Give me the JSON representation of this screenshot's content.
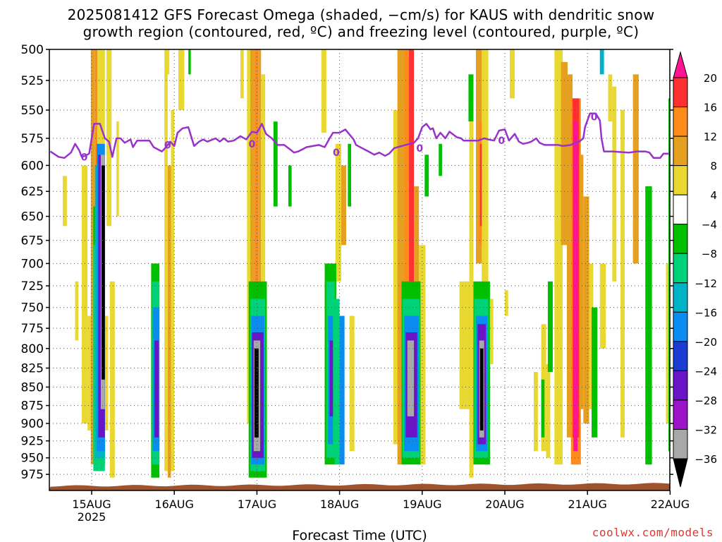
{
  "chart_data": {
    "type": "heatmap",
    "title_line1": "2025081412 GFS Forecast Omega (shaded, −cm/s) for KAUS with dendritic snow",
    "title_line2": "growth region (contoured, red, ºC) and freezing level (contoured, purple, ºC)",
    "xlabel": "Forecast Time (UTC)",
    "ylabel": "",
    "y_axis": {
      "levels": [
        500,
        525,
        550,
        575,
        600,
        625,
        650,
        675,
        700,
        725,
        750,
        775,
        800,
        825,
        850,
        875,
        900,
        925,
        950,
        975
      ],
      "range": [
        500,
        1000
      ],
      "scale": "log-pressure",
      "grid": "dotted"
    },
    "x_axis": {
      "range": [
        "2025-08-14 12Z",
        "2025-08-22 00Z"
      ],
      "ticks": [
        "15AUG",
        "16AUG",
        "17AUG",
        "18AUG",
        "19AUG",
        "20AUG",
        "21AUG",
        "22AUG"
      ],
      "year_label": "2025",
      "grid": "dotted"
    },
    "colorbar": {
      "labels": [
        "20",
        "16",
        "12",
        "8",
        "4",
        "−4",
        "−8",
        "−12",
        "−16",
        "−20",
        "−24",
        "−28",
        "−32",
        "−36"
      ],
      "colors": [
        "#ff1493",
        "#ff3030",
        "#ff8c1a",
        "#e6a020",
        "#e8d830",
        "#ffffff",
        "#00c000",
        "#00d27a",
        "#00b4c8",
        "#0a8cf0",
        "#1a3cd2",
        "#6a14c8",
        "#9c14c8",
        "#a8a8a8",
        "#000000"
      ]
    },
    "freezing_level": {
      "color": "#9932cc",
      "label": "0",
      "points": [
        [
          -0.5,
          587
        ],
        [
          -0.4,
          592
        ],
        [
          -0.33,
          593
        ],
        [
          -0.25,
          588
        ],
        [
          -0.2,
          580
        ],
        [
          -0.15,
          586
        ],
        [
          -0.12,
          592
        ],
        [
          -0.08,
          591
        ],
        [
          -0.03,
          589
        ],
        [
          0.0,
          575
        ],
        [
          0.03,
          562
        ],
        [
          0.1,
          562
        ],
        [
          0.16,
          575
        ],
        [
          0.21,
          578
        ],
        [
          0.25,
          592
        ],
        [
          0.3,
          575
        ],
        [
          0.35,
          575
        ],
        [
          0.4,
          579
        ],
        [
          0.47,
          576
        ],
        [
          0.5,
          583
        ],
        [
          0.55,
          577
        ],
        [
          0.6,
          577
        ],
        [
          0.7,
          577
        ],
        [
          0.75,
          583
        ],
        [
          0.85,
          587
        ],
        [
          0.9,
          583
        ],
        [
          0.95,
          578
        ],
        [
          1.0,
          582
        ],
        [
          1.04,
          570
        ],
        [
          1.1,
          566
        ],
        [
          1.17,
          565
        ],
        [
          1.24,
          582
        ],
        [
          1.3,
          578
        ],
        [
          1.35,
          576
        ],
        [
          1.4,
          578
        ],
        [
          1.5,
          575
        ],
        [
          1.55,
          578
        ],
        [
          1.6,
          575
        ],
        [
          1.65,
          578
        ],
        [
          1.72,
          577
        ],
        [
          1.8,
          573
        ],
        [
          1.87,
          576
        ],
        [
          1.94,
          569
        ],
        [
          2.0,
          570
        ],
        [
          2.06,
          562
        ],
        [
          2.11,
          571
        ],
        [
          2.18,
          575
        ],
        [
          2.25,
          581
        ],
        [
          2.33,
          581
        ],
        [
          2.4,
          585
        ],
        [
          2.45,
          588
        ],
        [
          2.5,
          587
        ],
        [
          2.55,
          585
        ],
        [
          2.6,
          583
        ],
        [
          2.75,
          581
        ],
        [
          2.82,
          583
        ],
        [
          2.88,
          575
        ],
        [
          2.92,
          570
        ],
        [
          3.0,
          570
        ],
        [
          3.07,
          567
        ],
        [
          3.17,
          576
        ],
        [
          3.2,
          581
        ],
        [
          3.3,
          585
        ],
        [
          3.35,
          587
        ],
        [
          3.42,
          590
        ],
        [
          3.48,
          588
        ],
        [
          3.55,
          591
        ],
        [
          3.6,
          589
        ],
        [
          3.66,
          584
        ],
        [
          3.75,
          582
        ],
        [
          3.85,
          580
        ],
        [
          3.9,
          579
        ],
        [
          3.95,
          575
        ],
        [
          4.0,
          565
        ],
        [
          4.05,
          562
        ],
        [
          4.1,
          567
        ],
        [
          4.13,
          566
        ],
        [
          4.17,
          575
        ],
        [
          4.22,
          570
        ],
        [
          4.28,
          575
        ],
        [
          4.33,
          569
        ],
        [
          4.42,
          574
        ],
        [
          4.47,
          575
        ],
        [
          4.5,
          577
        ],
        [
          4.6,
          577
        ],
        [
          4.68,
          577
        ],
        [
          4.75,
          575
        ],
        [
          4.8,
          576
        ],
        [
          4.87,
          577
        ],
        [
          4.93,
          568
        ],
        [
          5.0,
          567
        ],
        [
          5.05,
          577
        ],
        [
          5.12,
          571
        ],
        [
          5.17,
          578
        ],
        [
          5.22,
          580
        ],
        [
          5.28,
          579
        ],
        [
          5.32,
          578
        ],
        [
          5.38,
          575
        ],
        [
          5.42,
          579
        ],
        [
          5.48,
          581
        ],
        [
          5.55,
          581
        ],
        [
          5.6,
          581
        ],
        [
          5.65,
          581
        ],
        [
          5.7,
          582
        ],
        [
          5.8,
          581
        ],
        [
          5.85,
          579
        ],
        [
          5.9,
          578
        ],
        [
          5.95,
          575
        ],
        [
          5.97,
          565
        ],
        [
          6.03,
          553
        ],
        [
          6.1,
          553
        ],
        [
          6.15,
          559
        ],
        [
          6.17,
          575
        ],
        [
          6.2,
          587
        ],
        [
          6.3,
          587
        ],
        [
          6.5,
          588
        ],
        [
          6.6,
          587
        ],
        [
          6.7,
          587
        ],
        [
          6.75,
          588
        ],
        [
          6.8,
          593
        ],
        [
          6.88,
          593
        ],
        [
          6.92,
          589
        ],
        [
          7.0,
          589
        ],
        [
          7.05,
          580
        ],
        [
          7.1,
          580
        ]
      ],
      "loop_markers": [
        [
          -0.09,
          592
        ],
        [
          0.92,
          581
        ],
        [
          1.94,
          580
        ],
        [
          2.96,
          588
        ],
        [
          3.97,
          584
        ],
        [
          4.96,
          577
        ],
        [
          6.08,
          556
        ]
      ]
    },
    "ground_color": "#a0522d",
    "omega_cells": [
      [
        -0.5,
        -0.44,
        500,
        620,
        "#ffffff"
      ],
      [
        -0.35,
        -0.3,
        610,
        660,
        "#e8d830"
      ],
      [
        -0.2,
        -0.16,
        720,
        790,
        "#e8d830"
      ],
      [
        -0.12,
        -0.05,
        600,
        900,
        "#e8d830"
      ],
      [
        -0.05,
        0.2,
        760,
        910,
        "#e8d830"
      ],
      [
        -0.01,
        0.04,
        500,
        960,
        "#e6a020"
      ],
      [
        0.04,
        0.07,
        500,
        940,
        "#ff8c1a"
      ],
      [
        0.07,
        0.16,
        500,
        900,
        "#e8d830"
      ],
      [
        0.02,
        0.16,
        640,
        960,
        "#00c000"
      ],
      [
        0.02,
        0.16,
        680,
        970,
        "#00d27a"
      ],
      [
        0.04,
        0.16,
        600,
        950,
        "#00b4c8"
      ],
      [
        0.06,
        0.16,
        580,
        940,
        "#0a8cf0"
      ],
      [
        0.08,
        0.16,
        590,
        920,
        "#6a14c8"
      ],
      [
        0.11,
        0.16,
        590,
        880,
        "#a8a8a8"
      ],
      [
        0.12,
        0.16,
        600,
        840,
        "#000000"
      ],
      [
        0.18,
        0.24,
        500,
        590,
        "#e6a020"
      ],
      [
        0.18,
        0.24,
        500,
        660,
        "#e8d830"
      ],
      [
        0.22,
        0.28,
        720,
        980,
        "#e8d830"
      ],
      [
        0.3,
        0.33,
        560,
        650,
        "#e8d830"
      ],
      [
        0.9,
        0.94,
        500,
        520,
        "#e8d830"
      ],
      [
        1.05,
        1.12,
        480,
        550,
        "#e8d830"
      ],
      [
        1.17,
        1.2,
        500,
        520,
        "#00c000"
      ],
      [
        0.72,
        0.82,
        700,
        980,
        "#00c000"
      ],
      [
        0.73,
        0.82,
        720,
        960,
        "#00d27a"
      ],
      [
        0.74,
        0.82,
        750,
        940,
        "#0a8cf0"
      ],
      [
        0.76,
        0.81,
        790,
        920,
        "#6a14c8"
      ],
      [
        0.88,
        0.92,
        500,
        970,
        "#e8d830"
      ],
      [
        0.92,
        0.96,
        600,
        980,
        "#e6a020"
      ],
      [
        0.96,
        1.0,
        550,
        970,
        "#e8d830"
      ],
      [
        1.8,
        1.84,
        500,
        540,
        "#e8d830"
      ],
      [
        1.88,
        1.92,
        500,
        900,
        "#e8d830"
      ],
      [
        1.92,
        1.97,
        500,
        930,
        "#e6a020"
      ],
      [
        1.97,
        2.02,
        500,
        940,
        "#ff8c1a"
      ],
      [
        2.02,
        2.05,
        500,
        960,
        "#e6a020"
      ],
      [
        2.05,
        2.1,
        520,
        850,
        "#e8d830"
      ],
      [
        1.9,
        2.12,
        720,
        980,
        "#00c000"
      ],
      [
        1.92,
        2.1,
        740,
        970,
        "#00d27a"
      ],
      [
        1.93,
        2.09,
        760,
        960,
        "#0a8cf0"
      ],
      [
        1.94,
        2.08,
        780,
        950,
        "#6a14c8"
      ],
      [
        1.96,
        2.04,
        790,
        940,
        "#a8a8a8"
      ],
      [
        1.97,
        2.02,
        800,
        920,
        "#000000"
      ],
      [
        2.2,
        2.25,
        560,
        640,
        "#00c000"
      ],
      [
        2.38,
        2.42,
        600,
        640,
        "#00c000"
      ],
      [
        2.78,
        2.84,
        500,
        570,
        "#e8d830"
      ],
      [
        2.95,
        3.02,
        580,
        720,
        "#e8d830"
      ],
      [
        3.02,
        3.08,
        600,
        680,
        "#e6a020"
      ],
      [
        2.82,
        2.96,
        700,
        960,
        "#00c000"
      ],
      [
        2.84,
        2.94,
        720,
        950,
        "#00d27a"
      ],
      [
        2.86,
        2.92,
        760,
        930,
        "#0a8cf0"
      ],
      [
        2.88,
        2.92,
        790,
        890,
        "#6a14c8"
      ],
      [
        2.94,
        3.0,
        740,
        960,
        "#00d27a"
      ],
      [
        3.0,
        3.06,
        760,
        960,
        "#0a8cf0"
      ],
      [
        3.1,
        3.14,
        580,
        640,
        "#00c000"
      ],
      [
        3.12,
        3.18,
        760,
        940,
        "#e8d830"
      ],
      [
        3.65,
        3.72,
        550,
        930,
        "#e8d830"
      ],
      [
        3.7,
        3.78,
        500,
        960,
        "#e6a020"
      ],
      [
        3.78,
        3.84,
        500,
        950,
        "#ff8c1a"
      ],
      [
        3.84,
        3.9,
        500,
        930,
        "#ff3030"
      ],
      [
        3.9,
        3.96,
        620,
        920,
        "#e6a020"
      ],
      [
        3.96,
        4.04,
        680,
        960,
        "#e8d830"
      ],
      [
        3.75,
        3.98,
        720,
        960,
        "#00c000"
      ],
      [
        3.76,
        3.97,
        740,
        950,
        "#00d27a"
      ],
      [
        3.78,
        3.96,
        760,
        940,
        "#0a8cf0"
      ],
      [
        3.8,
        3.94,
        780,
        920,
        "#6a14c8"
      ],
      [
        3.82,
        3.9,
        790,
        890,
        "#a8a8a8"
      ],
      [
        4.03,
        4.08,
        590,
        630,
        "#00c000"
      ],
      [
        4.2,
        4.24,
        580,
        610,
        "#00c000"
      ],
      [
        4.56,
        4.62,
        520,
        560,
        "#00c000"
      ],
      [
        4.45,
        4.6,
        720,
        880,
        "#e8d830"
      ],
      [
        4.57,
        4.62,
        560,
        980,
        "#e8d830"
      ],
      [
        4.72,
        4.78,
        500,
        590,
        "#e6a020"
      ],
      [
        4.65,
        4.75,
        500,
        700,
        "#e6a020"
      ],
      [
        4.68,
        4.74,
        560,
        680,
        "#ff8c1a"
      ],
      [
        4.7,
        4.73,
        580,
        660,
        "#ff3030"
      ],
      [
        4.72,
        4.8,
        500,
        720,
        "#e8d830"
      ],
      [
        4.62,
        4.82,
        720,
        960,
        "#00c000"
      ],
      [
        4.63,
        4.8,
        740,
        950,
        "#00d27a"
      ],
      [
        4.65,
        4.79,
        760,
        940,
        "#0a8cf0"
      ],
      [
        4.67,
        4.77,
        770,
        930,
        "#6a14c8"
      ],
      [
        4.69,
        4.75,
        790,
        920,
        "#a8a8a8"
      ],
      [
        4.7,
        4.74,
        800,
        910,
        "#000000"
      ],
      [
        4.82,
        4.86,
        740,
        820,
        "#e8d830"
      ],
      [
        5.0,
        5.04,
        730,
        760,
        "#e8d830"
      ],
      [
        5.06,
        5.12,
        500,
        540,
        "#e8d830"
      ],
      [
        5.35,
        5.4,
        830,
        940,
        "#e8d830"
      ],
      [
        5.44,
        5.5,
        770,
        940,
        "#e8d830"
      ],
      [
        5.5,
        5.55,
        820,
        950,
        "#e8d830"
      ],
      [
        5.44,
        5.48,
        840,
        920,
        "#00c000"
      ],
      [
        5.52,
        5.58,
        720,
        830,
        "#00c000"
      ],
      [
        5.6,
        5.7,
        500,
        960,
        "#e8d830"
      ],
      [
        5.68,
        5.76,
        510,
        680,
        "#e6a020"
      ],
      [
        5.75,
        5.82,
        520,
        920,
        "#e6a020"
      ],
      [
        5.8,
        5.92,
        540,
        960,
        "#ff8c1a"
      ],
      [
        5.82,
        5.9,
        540,
        920,
        "#ff3030"
      ],
      [
        5.83,
        5.88,
        560,
        940,
        "#ff1493"
      ],
      [
        5.9,
        5.95,
        590,
        880,
        "#e6a020"
      ],
      [
        5.95,
        6.02,
        630,
        900,
        "#e6a020"
      ],
      [
        6.02,
        6.07,
        700,
        880,
        "#e8d830"
      ],
      [
        6.05,
        6.12,
        750,
        920,
        "#00c000"
      ],
      [
        6.15,
        6.22,
        700,
        800,
        "#e8d830"
      ],
      [
        6.25,
        6.3,
        520,
        560,
        "#e8d830"
      ],
      [
        6.15,
        6.2,
        500,
        520,
        "#00b4c8"
      ],
      [
        6.3,
        6.35,
        530,
        720,
        "#e8d830"
      ],
      [
        6.4,
        6.45,
        550,
        920,
        "#e8d830"
      ],
      [
        6.55,
        6.62,
        520,
        700,
        "#e6a020"
      ],
      [
        6.7,
        6.78,
        620,
        960,
        "#00c000"
      ],
      [
        6.95,
        7.02,
        700,
        900,
        "#e8d830"
      ],
      [
        6.98,
        7.04,
        540,
        940,
        "#00c000"
      ],
      [
        7.04,
        7.08,
        500,
        940,
        "#00c000"
      ],
      [
        7.06,
        7.1,
        500,
        520,
        "#00d27a"
      ]
    ]
  },
  "credit": "coolwx.com/models"
}
